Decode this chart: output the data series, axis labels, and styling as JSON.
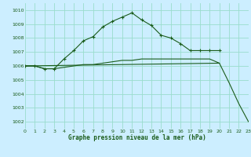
{
  "title": "Graphe pression niveau de la mer (hPa)",
  "bg_color": "#cceeff",
  "grid_color": "#99ddcc",
  "line_color": "#1a5c1a",
  "xlim": [
    0,
    23
  ],
  "ylim": [
    1001.5,
    1010.5
  ],
  "yticks": [
    1002,
    1003,
    1004,
    1005,
    1006,
    1007,
    1008,
    1009,
    1010
  ],
  "xticks": [
    0,
    1,
    2,
    3,
    4,
    5,
    6,
    7,
    8,
    9,
    10,
    11,
    12,
    13,
    14,
    15,
    16,
    17,
    18,
    19,
    20,
    21,
    22,
    23
  ],
  "series_main": {
    "x": [
      0,
      1,
      2,
      3,
      4,
      5,
      6,
      7,
      8,
      9,
      10,
      11,
      12,
      13,
      14,
      15,
      16,
      17,
      18,
      19,
      20,
      21,
      22,
      23
    ],
    "y": [
      1006.0,
      1006.0,
      1005.8,
      1005.8,
      1006.5,
      1007.1,
      1007.8,
      1008.1,
      1008.8,
      1009.2,
      1009.5,
      1009.8,
      1009.3,
      1008.9,
      1008.2,
      1008.0,
      1007.6,
      1007.1,
      1007.1,
      1007.1,
      1007.1,
      1007.1,
      null,
      null
    ]
  },
  "series_flat": {
    "x": [
      0,
      1,
      2,
      3,
      4,
      5,
      6,
      7,
      8,
      9,
      10,
      11,
      12,
      13,
      14,
      15,
      16,
      17,
      18,
      19,
      20
    ],
    "y": [
      1006.0,
      1006.0,
      1005.8,
      1005.8,
      1005.9,
      1006.0,
      1006.1,
      1006.1,
      1006.2,
      1006.3,
      1006.4,
      1006.4,
      1006.5,
      1006.5,
      1006.5,
      1006.5,
      1006.5,
      1006.5,
      1006.5,
      1006.5,
      1006.2
    ]
  },
  "series_diag": {
    "x": [
      0,
      20,
      21,
      22,
      23
    ],
    "y": [
      1006.0,
      1006.2,
      1004.8,
      1003.3,
      1002.0
    ]
  }
}
